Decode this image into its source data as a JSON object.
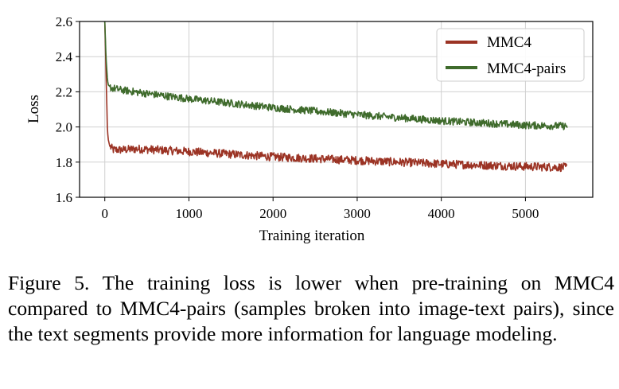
{
  "chart_data": {
    "type": "line",
    "title": "",
    "xlabel": "Training iteration",
    "ylabel": "Loss",
    "xlim": [
      -300,
      5800
    ],
    "ylim": [
      1.6,
      2.6
    ],
    "xticks": [
      0,
      1000,
      2000,
      3000,
      4000,
      5000
    ],
    "yticks": [
      1.6,
      1.8,
      2.0,
      2.2,
      2.4,
      2.6
    ],
    "xtick_labels": [
      "0",
      "1000",
      "2000",
      "3000",
      "4000",
      "5000"
    ],
    "ytick_labels": [
      "1.6",
      "1.8",
      "2.0",
      "2.2",
      "2.4",
      "2.6"
    ],
    "grid": true,
    "legend_position": "top-right",
    "series": [
      {
        "name": "MMC4",
        "color": "#9b3324",
        "noise": 0.04,
        "x": [
          0,
          10,
          20,
          30,
          40,
          60,
          80,
          100,
          200,
          400,
          1000,
          2000,
          3000,
          4000,
          5000,
          5500
        ],
        "y": [
          2.6,
          2.4,
          2.2,
          2.0,
          1.93,
          1.89,
          1.88,
          1.87,
          1.87,
          1.875,
          1.86,
          1.83,
          1.81,
          1.79,
          1.775,
          1.77
        ]
      },
      {
        "name": "MMC4-pairs",
        "color": "#3f6b2c",
        "noise": 0.035,
        "x": [
          0,
          10,
          20,
          30,
          40,
          60,
          80,
          100,
          200,
          500,
          1000,
          2000,
          3000,
          4000,
          5000,
          5500
        ],
        "y": [
          2.6,
          2.45,
          2.35,
          2.28,
          2.24,
          2.23,
          2.22,
          2.22,
          2.21,
          2.19,
          2.16,
          2.11,
          2.07,
          2.035,
          2.01,
          2.005
        ]
      }
    ]
  },
  "caption": "Figure 5. The training loss is lower when pre-training on MMC4 compared to MMC4-pairs (samples broken into image-text pairs), since the text segments provide more information for language modeling."
}
